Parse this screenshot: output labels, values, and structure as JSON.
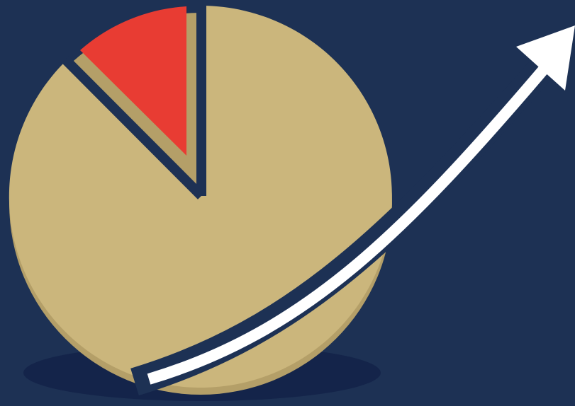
{
  "illustration": {
    "subject": "pie-chart-with-rising-arrow-icon",
    "colors": {
      "background": "#1d3154",
      "floor_shadow": "#14244a",
      "pie_main": "#cbb67c",
      "pie_shade": "#b49f68",
      "pie_highlight_slice": "#e83c33",
      "gap": "#1d3154",
      "arrow": "#ffffff"
    },
    "slices": [
      {
        "name": "large-slice",
        "share": 0.875,
        "color_key": "pie_main"
      },
      {
        "name": "small-slice",
        "share": 0.125,
        "color_key": "pie_highlight_slice"
      }
    ]
  }
}
